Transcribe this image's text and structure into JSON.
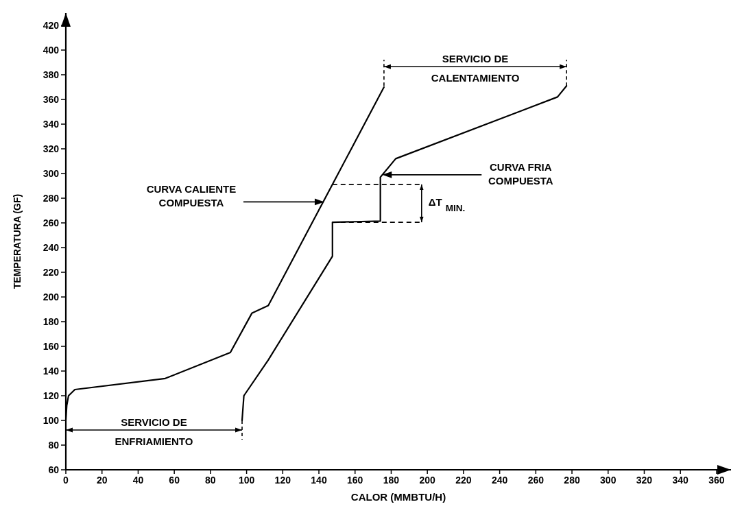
{
  "chart_data": {
    "type": "line",
    "xlabel": "CALOR (MMBTU/H)",
    "ylabel": "TEMPERATURA (GF)",
    "xlim": [
      0,
      368
    ],
    "ylim": [
      60,
      430
    ],
    "xticks": [
      0,
      20,
      40,
      60,
      80,
      100,
      120,
      140,
      160,
      180,
      200,
      220,
      240,
      260,
      280,
      300,
      320,
      340,
      360
    ],
    "yticks": [
      60,
      80,
      100,
      120,
      140,
      160,
      180,
      200,
      220,
      240,
      260,
      280,
      300,
      320,
      340,
      360,
      380,
      400,
      420
    ],
    "grid": false,
    "marker": "none",
    "line_style": "solid",
    "series": [
      {
        "color": "#000000",
        "x": [
          0,
          0.5,
          1.5,
          5,
          55,
          91,
          103,
          112,
          176
        ],
        "values": [
          100,
          112,
          120,
          125,
          134,
          155,
          187,
          193,
          370
        ]
      },
      {
        "color": "#000000",
        "x": [
          97.5,
          98.5,
          112,
          147.5,
          147.5,
          174,
          174,
          182.5,
          272,
          277
        ],
        "values": [
          100,
          120,
          149,
          233,
          260.5,
          261.5,
          297,
          312,
          362,
          371
        ]
      }
    ],
    "annotations": [
      {
        "text": "CURVA CALIENTE\nCOMPUESTA",
        "x": 143,
        "y": 277
      },
      {
        "text": "CURVA FRIA\nCOMPUESTA",
        "x": 175,
        "y": 299
      },
      "ΔT$_{MIN.}$",
      "SERVICIO DE\nENFRIAMIENTO",
      "SERVICIO DE\nCALENTAMIENTO"
    ]
  }
}
